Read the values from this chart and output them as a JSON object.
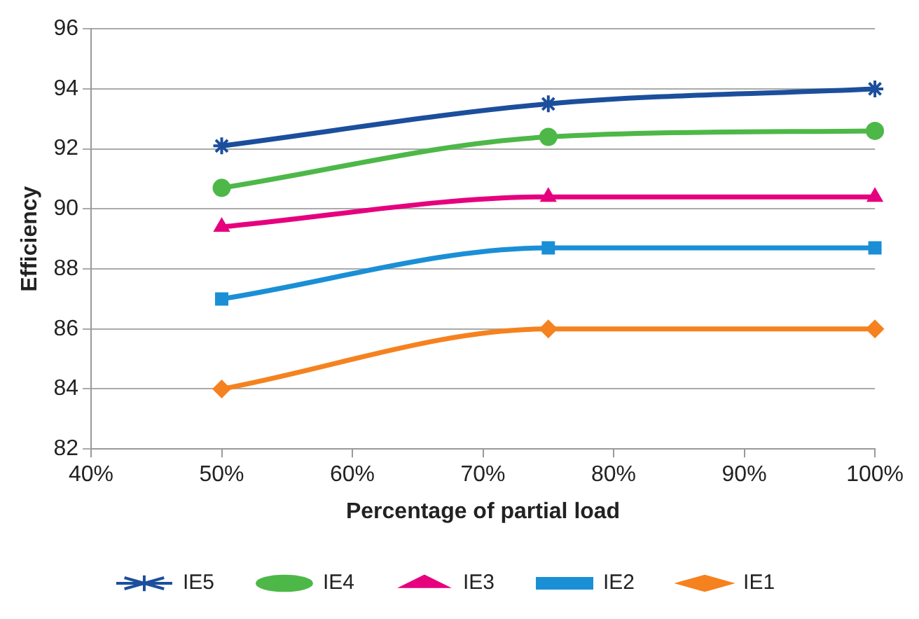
{
  "chart_data": {
    "type": "line",
    "xlabel": "Percentage of partial load",
    "ylabel": "Efficiency",
    "x": [
      50,
      75,
      100
    ],
    "xlim": [
      40,
      100
    ],
    "xticks": [
      {
        "value": 40,
        "label": "40%"
      },
      {
        "value": 50,
        "label": "50%"
      },
      {
        "value": 60,
        "label": "60%"
      },
      {
        "value": 70,
        "label": "70%"
      },
      {
        "value": 80,
        "label": "80%"
      },
      {
        "value": 90,
        "label": "90%"
      },
      {
        "value": 100,
        "label": "100%"
      }
    ],
    "ylim": [
      82,
      96
    ],
    "yticks": [
      82,
      84,
      86,
      88,
      90,
      92,
      94,
      96
    ],
    "grid": "y",
    "legend": "bottom",
    "series": [
      {
        "name": "IE5",
        "color": "#1b4f9c",
        "marker": "cross",
        "values": [
          92.1,
          93.5,
          94.0
        ]
      },
      {
        "name": "IE4",
        "color": "#4db848",
        "marker": "circle",
        "values": [
          90.7,
          92.4,
          92.6
        ]
      },
      {
        "name": "IE3",
        "color": "#e6007e",
        "marker": "triangle",
        "values": [
          89.4,
          90.4,
          90.4
        ]
      },
      {
        "name": "IE2",
        "color": "#1a8fd6",
        "marker": "square",
        "values": [
          87.0,
          88.7,
          88.7
        ]
      },
      {
        "name": "IE1",
        "color": "#f5821f",
        "marker": "diamond",
        "values": [
          84,
          86,
          86
        ]
      }
    ]
  }
}
